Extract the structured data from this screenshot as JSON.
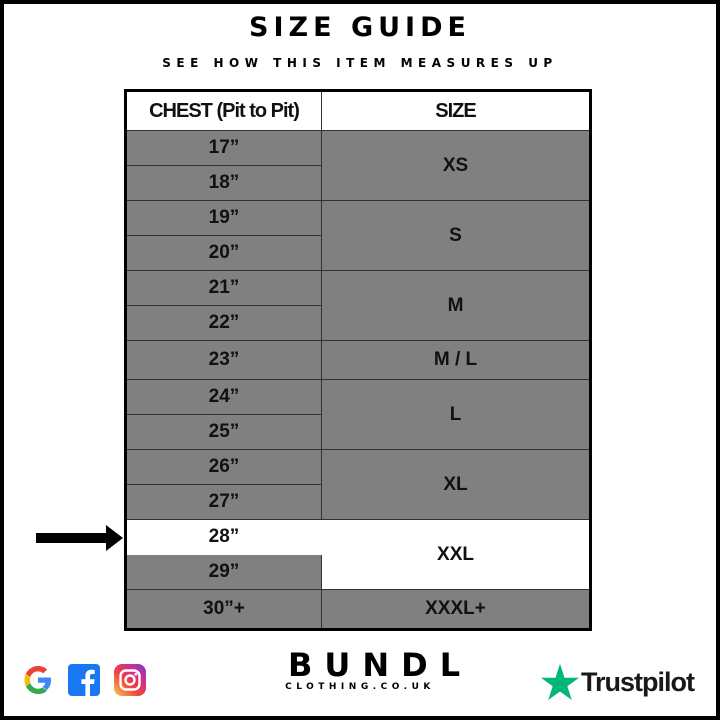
{
  "title": "SIZE GUIDE",
  "subtitle": "SEE HOW THIS ITEM MEASURES UP",
  "table": {
    "headers": [
      "CHEST (Pit to Pit)",
      "SIZE"
    ],
    "chest": [
      "17”",
      "18”",
      "19”",
      "20”",
      "21”",
      "22”",
      "23”",
      "24”",
      "25”",
      "26”",
      "27”",
      "28”",
      "29”",
      "30”+"
    ],
    "sizes": [
      "XS",
      "S",
      "M",
      "M / L",
      "L",
      "XL",
      "XXL",
      "XXXL+"
    ],
    "highlighted": {
      "chest": "28”",
      "size": "XXL"
    }
  },
  "colors": {
    "row_bg": "#808080",
    "highlight_bg": "#ffffff",
    "trustpilot_star": "#00b67a"
  },
  "footer": {
    "social_icons": [
      "google-icon",
      "facebook-icon",
      "instagram-icon"
    ],
    "brand": "BUNDL",
    "brand_sub": "CLOTHING.CO.UK",
    "trustpilot": "Trustpilot"
  }
}
